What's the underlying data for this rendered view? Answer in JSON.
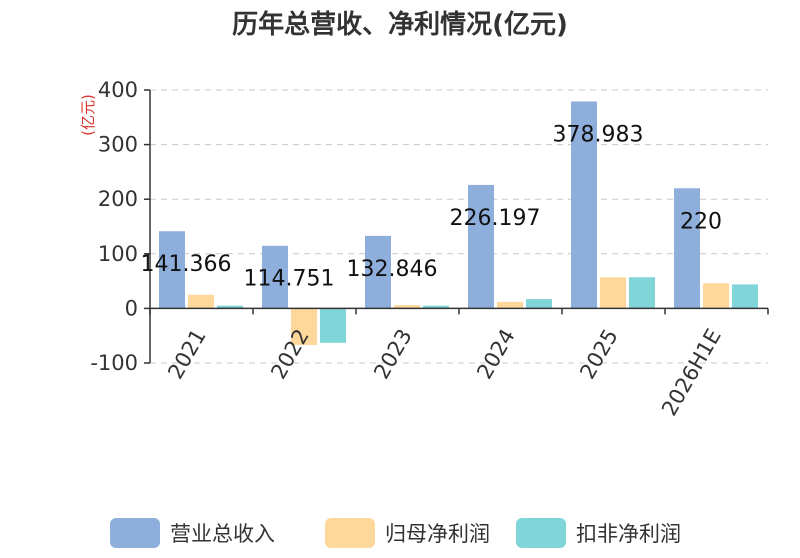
{
  "chart_data": {
    "type": "bar",
    "title": "历年总营收、净利情况(亿元)",
    "ylabel": "(亿元)",
    "xlabel": "",
    "ylim": [
      -100,
      400
    ],
    "yticks": [
      400,
      300,
      200,
      100,
      0,
      -100
    ],
    "ytick_labels": [
      "400",
      "300",
      "200",
      "100",
      "0",
      "-100"
    ],
    "grid": true,
    "legend_position": "bottom",
    "categories": [
      "2021",
      "2022",
      "2023",
      "2024",
      "2025",
      "2026H1E"
    ],
    "series": [
      {
        "name": "营业总收入",
        "color": "#8eaedc",
        "values": [
          141.366,
          114.751,
          132.846,
          226.197,
          378.983,
          220
        ]
      },
      {
        "name": "归母净利润",
        "color": "#fdd89a",
        "values": [
          25,
          -67,
          6,
          12,
          57,
          46
        ]
      },
      {
        "name": "扣非净利润",
        "color": "#7fd5d7",
        "values": [
          5,
          -63,
          5,
          17,
          57,
          44
        ]
      }
    ],
    "data_labels": [
      "141.366",
      "114.751",
      "132.846",
      "226.197",
      "378.983",
      "220"
    ]
  }
}
